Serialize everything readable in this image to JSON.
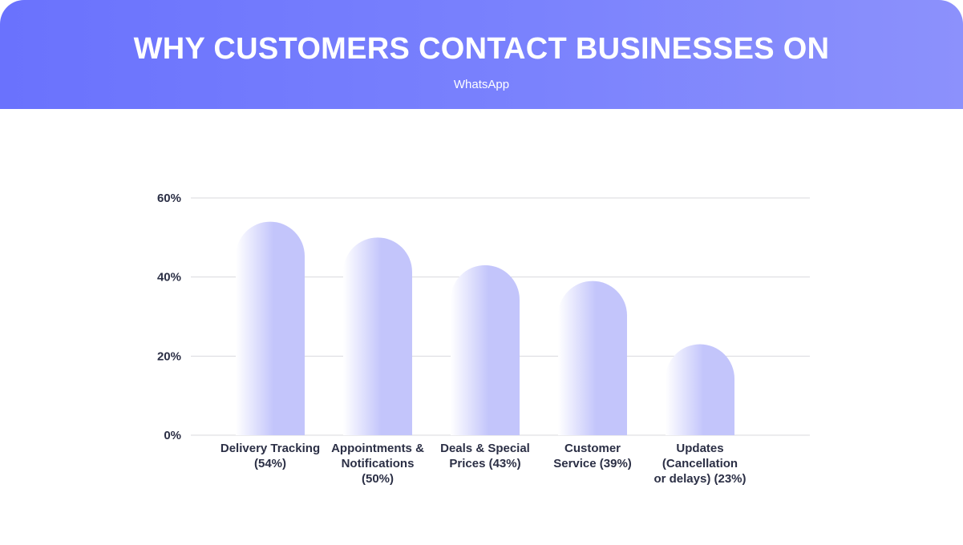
{
  "header": {
    "title": "WHY CUSTOMERS CONTACT BUSINESSES ON",
    "subtitle": "WhatsApp"
  },
  "colors": {
    "header_start": "#6a72fd",
    "header_end": "#8c91fc",
    "bar": "#c3c5fb",
    "grid": "#d9d9de",
    "text": "#2b2f45"
  },
  "chart_data": {
    "type": "bar",
    "title": "WHY CUSTOMERS CONTACT BUSINESSES ON",
    "subtitle": "WhatsApp",
    "categories": [
      [
        "Delivery Tracking",
        "(54%)"
      ],
      [
        "Appointments &",
        "Notifications",
        "(50%)"
      ],
      [
        "Deals & Special",
        "Prices (43%)"
      ],
      [
        "Customer",
        "Service (39%)"
      ],
      [
        "Updates",
        "(Cancellation",
        "or delays) (23%)"
      ]
    ],
    "values": [
      54,
      50,
      43,
      39,
      23
    ],
    "yticks": [
      "0%",
      "20%",
      "40%",
      "60%"
    ],
    "ylim": [
      0,
      60
    ],
    "grid": true,
    "legend": "none"
  }
}
